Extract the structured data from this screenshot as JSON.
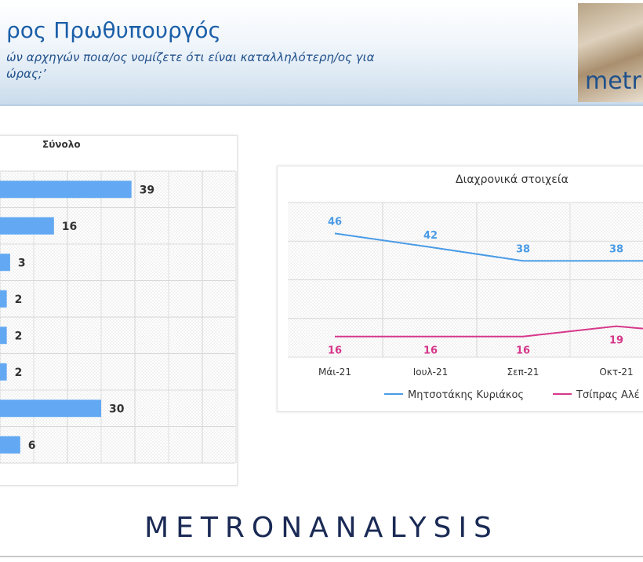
{
  "header": {
    "title": "ρος Πρωθυπουργός",
    "question_line1": "ών αρχηγών ποια/ος νομίζετε ότι είναι καταλληλότερη/ος για",
    "question_line2": "ώρας;’",
    "logo": "metr"
  },
  "footer": {
    "logo": "METRONANALYSIS"
  },
  "colors": {
    "bar": "#62a8f2",
    "series1": "#4a9be6",
    "series2": "#d6378a",
    "grid": "#d8d8d8"
  },
  "chart_data": [
    {
      "type": "bar",
      "orientation": "horizontal",
      "title": "Σύνολο",
      "categories": [
        "",
        "",
        "",
        "",
        "",
        "",
        "",
        ""
      ],
      "values": [
        39,
        16,
        3,
        2,
        2,
        2,
        30,
        6
      ]
    },
    {
      "type": "line",
      "title": "Διαχρονικά στοιχεία",
      "categories": [
        "Μάι-21",
        "Ιουλ-21",
        "Σεπ-21",
        "Οκτ-21"
      ],
      "series": [
        {
          "name": "Μητσοτάκης Κυριάκος",
          "values": [
            46,
            42,
            38,
            38
          ]
        },
        {
          "name": "Τσίπρας Αλέ",
          "values": [
            16,
            16,
            16,
            19
          ]
        }
      ],
      "legend": "bottom"
    }
  ]
}
